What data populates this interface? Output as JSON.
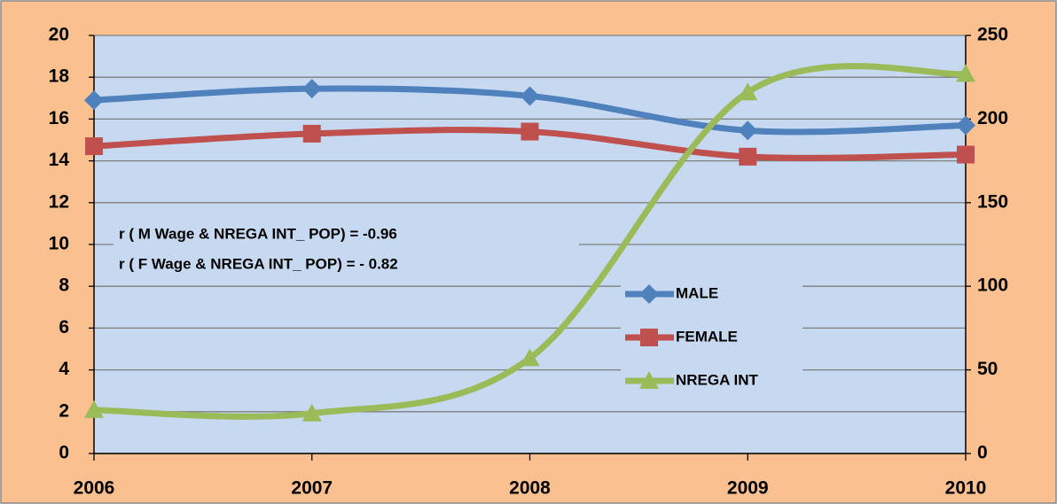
{
  "chart_data": {
    "type": "line",
    "annotations": [
      "r ( M Wage & NREGA INT_ POP)  = -0.96",
      "r ( F Wage & NREGA INT_ POP)  = - 0.82"
    ],
    "x": [
      2006,
      2007,
      2008,
      2009,
      2010
    ],
    "xlim": [
      2006,
      2010
    ],
    "xticks": [
      2006,
      2007,
      2008,
      2009,
      2010
    ],
    "ylim": [
      0,
      20
    ],
    "yticks": [
      0,
      2,
      4,
      6,
      8,
      10,
      12,
      14,
      16,
      18,
      20
    ],
    "y2lim": [
      0,
      250
    ],
    "y2ticks": [
      0,
      50,
      100,
      150,
      200,
      250
    ],
    "grid": true,
    "series": [
      {
        "name": "MALE",
        "color": "#4f81bd",
        "marker": "diamond",
        "values": [
          16.9,
          17.45,
          17.1,
          15.45,
          15.7
        ]
      },
      {
        "name": "FEMALE",
        "color": "#c0504d",
        "marker": "square",
        "values": [
          14.7,
          15.3,
          15.4,
          14.2,
          14.3
        ]
      },
      {
        "name": "NREGA INT",
        "color": "#9bbb59",
        "marker": "triangle",
        "axis": "y2",
        "values": [
          26,
          24,
          57,
          216,
          227
        ]
      }
    ]
  }
}
